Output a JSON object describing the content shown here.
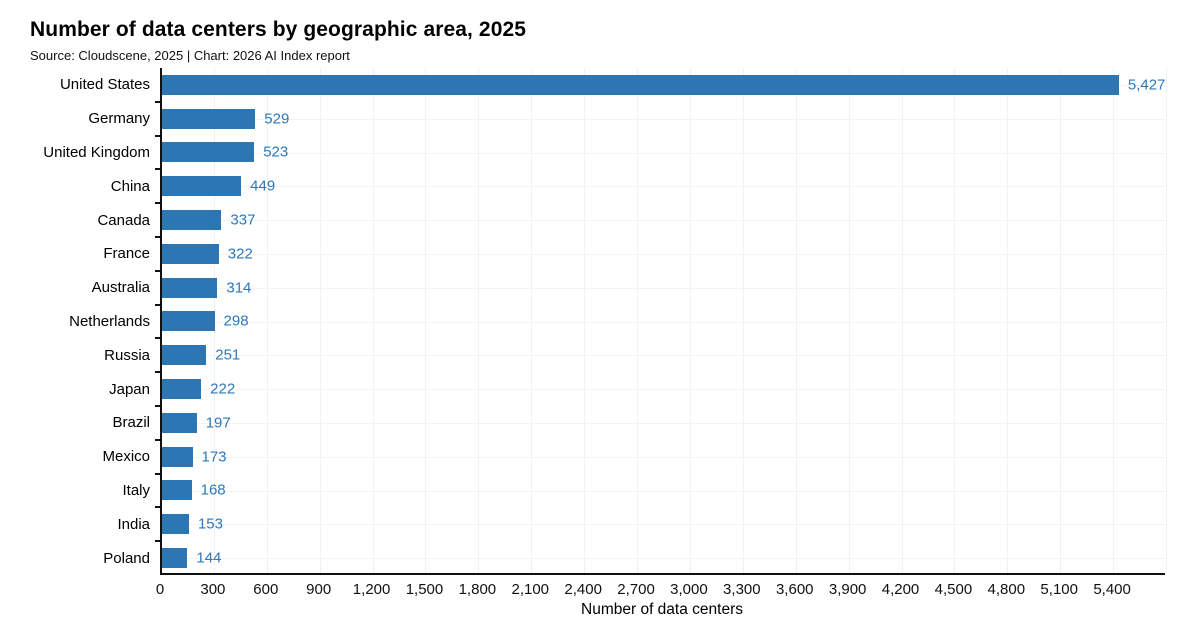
{
  "header": {
    "title": "Number of data centers by geographic area, 2025",
    "subtitle": "Source: Cloudscene, 2025 | Chart: 2026 AI Index report"
  },
  "chart_data": {
    "type": "bar",
    "orientation": "horizontal",
    "title": "Number of data centers by geographic area, 2025",
    "subtitle": "Source: Cloudscene, 2025 | Chart: 2026 AI Index report",
    "categories": [
      "United States",
      "Germany",
      "United Kingdom",
      "China",
      "Canada",
      "France",
      "Australia",
      "Netherlands",
      "Russia",
      "Japan",
      "Brazil",
      "Mexico",
      "Italy",
      "India",
      "Poland"
    ],
    "values": [
      5427,
      529,
      523,
      449,
      337,
      322,
      314,
      298,
      251,
      222,
      197,
      173,
      168,
      153,
      144
    ],
    "value_labels": [
      "5,427",
      "529",
      "523",
      "449",
      "337",
      "322",
      "314",
      "298",
      "251",
      "222",
      "197",
      "173",
      "168",
      "153",
      "144"
    ],
    "xlabel": "Number of data centers",
    "ylabel": "",
    "xlim": [
      0,
      5700
    ],
    "xticks": [
      0,
      300,
      600,
      900,
      1200,
      1500,
      1800,
      2100,
      2400,
      2700,
      3000,
      3300,
      3600,
      3900,
      4200,
      4500,
      4800,
      5100,
      5400
    ],
    "xtick_labels": [
      "0",
      "300",
      "600",
      "900",
      "1,200",
      "1,500",
      "1,800",
      "2,100",
      "2,400",
      "2,700",
      "3,000",
      "3,300",
      "3,600",
      "3,900",
      "4,200",
      "4,500",
      "4,800",
      "5,100",
      "5,400"
    ],
    "grid": true,
    "legend": "none",
    "colors": {
      "bar": "#2b76b3",
      "value_label": "#2d78ba",
      "axis": "#111111",
      "vertical_gridline": "#f1f1f1",
      "horizontal_gridline": "#f3f3f3",
      "text": "#000000"
    }
  }
}
